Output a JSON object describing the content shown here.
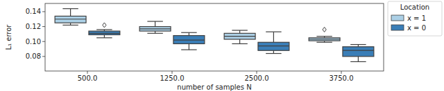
{
  "chart_data": {
    "type": "box",
    "x_label": "number of samples N",
    "y_label": "L₁ error",
    "legend_title": "Location",
    "legend": "right",
    "categories": [
      "500.0",
      "1250.0",
      "2500.0",
      "3750.0"
    ],
    "ylim": [
      0.0605,
      0.151
    ],
    "yticks": [
      0.08,
      {
        "value": 0.1,
        "label": "0.10"
      },
      0.12,
      0.14
    ],
    "series": [
      {
        "name": "x = 1",
        "color": "#acd0e6",
        "whisker_low": [
          0.122,
          0.111,
          0.097,
          0.099
        ],
        "q1": [
          0.125,
          0.114,
          0.103,
          0.101
        ],
        "median": [
          0.13,
          0.117,
          0.107,
          0.103
        ],
        "q3": [
          0.134,
          0.12,
          0.111,
          0.105
        ],
        "whisker_high": [
          0.144,
          0.127,
          0.115,
          0.107
        ],
        "outliers": [
          [],
          [],
          [],
          [
            0.116
          ]
        ]
      },
      {
        "name": "x = 0",
        "color": "#3a7eb7",
        "whisker_low": [
          0.105,
          0.089,
          0.084,
          0.073
        ],
        "q1": [
          0.109,
          0.097,
          0.088,
          0.08
        ],
        "median": [
          0.111,
          0.102,
          0.094,
          0.088
        ],
        "q3": [
          0.114,
          0.108,
          0.099,
          0.093
        ],
        "whisker_high": [
          0.116,
          0.112,
          0.113,
          0.096
        ],
        "outliers": [
          [
            0.122
          ],
          [],
          [],
          []
        ]
      }
    ]
  }
}
